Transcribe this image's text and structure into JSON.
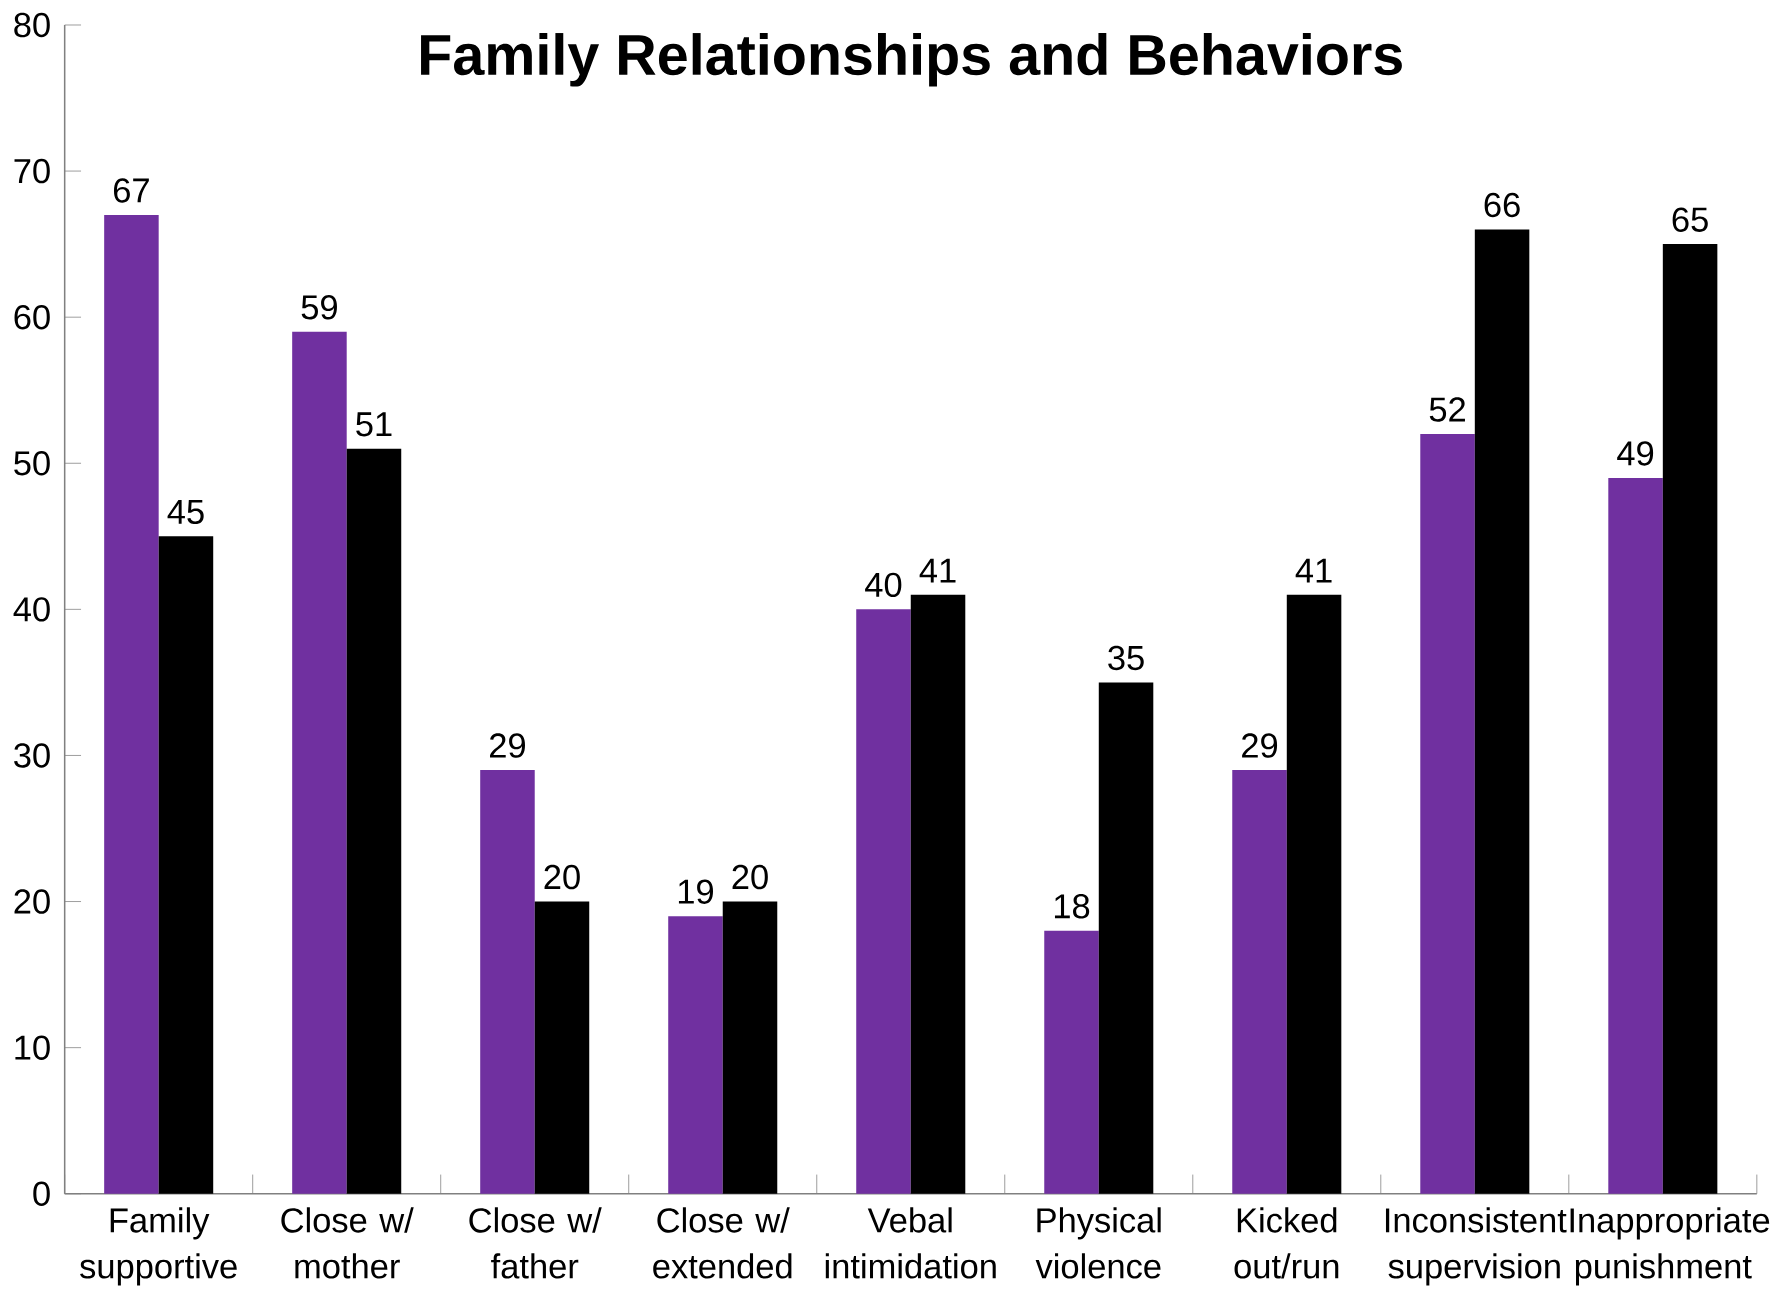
{
  "chart_data": {
    "type": "bar",
    "title": "Family Relationships and Behaviors",
    "categories": [
      "Family supportive",
      "Close w/ mother",
      "Close w/ father",
      "Close w/ extended",
      "Vebal intimidation",
      "Physical violence",
      "Kicked out/run",
      "Inconsistent supervision",
      "Inappropriate punishment"
    ],
    "series": [
      {
        "color": "#7030a0",
        "values": [
          67,
          59,
          29,
          19,
          40,
          18,
          29,
          52,
          49
        ]
      },
      {
        "color": "#000000",
        "values": [
          45,
          51,
          20,
          20,
          41,
          35,
          41,
          66,
          65
        ]
      }
    ],
    "ylim": [
      0,
      80
    ],
    "yticks": [
      0,
      10,
      20,
      30,
      40,
      50,
      60,
      70,
      80
    ],
    "data_labels": true,
    "grid": false
  }
}
